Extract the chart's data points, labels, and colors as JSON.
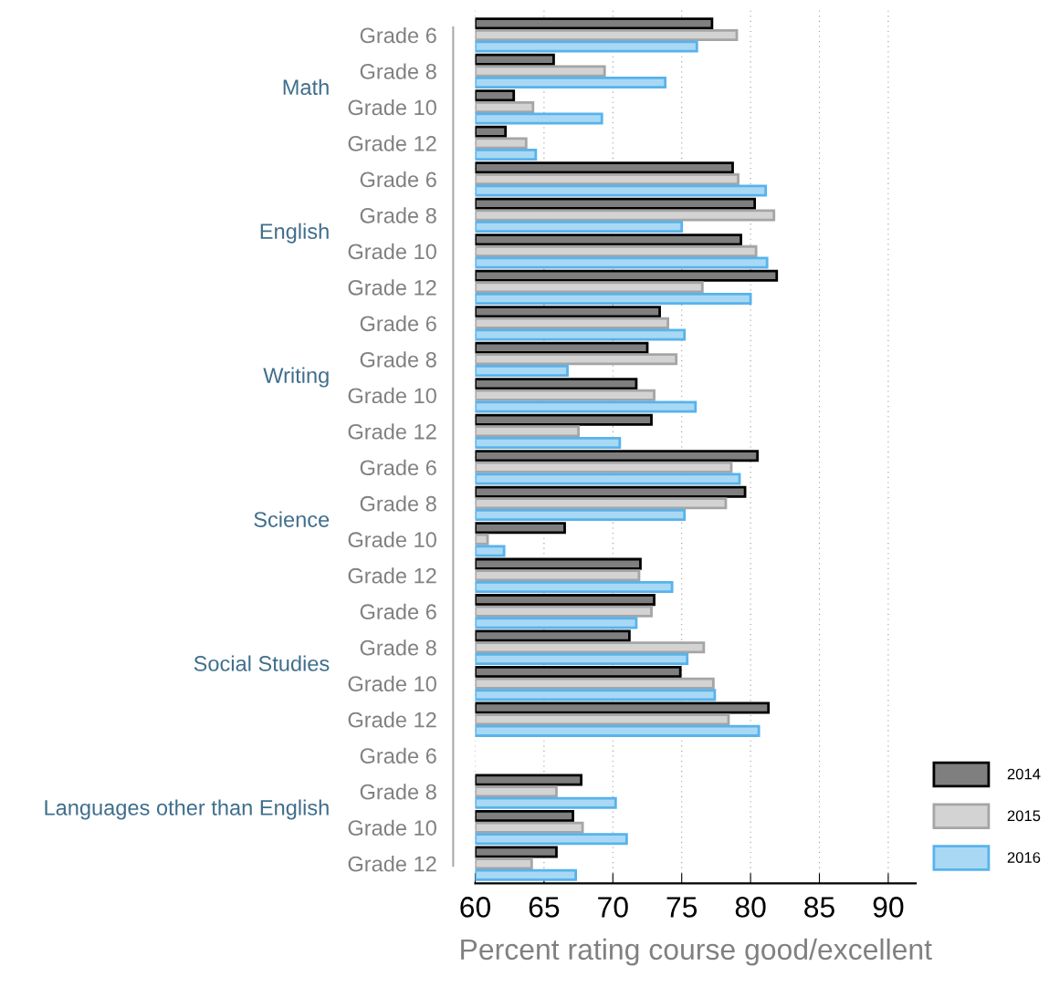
{
  "chart_data": {
    "type": "bar",
    "orientation": "horizontal",
    "categories": [
      "Grade 6",
      "Grade 8",
      "Grade 10",
      "Grade 12",
      "Grade 6",
      "Grade 8",
      "Grade 10",
      "Grade 12",
      "Grade 6",
      "Grade 8",
      "Grade 10",
      "Grade 12",
      "Grade 6",
      "Grade 8",
      "Grade 10",
      "Grade 12",
      "Grade 6",
      "Grade 8",
      "Grade 10",
      "Grade 12",
      "Grade 6",
      "Grade 8",
      "Grade 10",
      "Grade 12"
    ],
    "annotations": [
      "Math",
      "English",
      "Writing",
      "Science",
      "Social Studies",
      "Languages other than English"
    ],
    "xlabel": "Percent rating course good/excellent",
    "xlim": [
      60,
      92
    ],
    "xticks": [
      60,
      65,
      70,
      75,
      80,
      85,
      90
    ],
    "grid": "x",
    "legend": "bottom right",
    "series": [
      {
        "name": "2014",
        "color": "#7f7f7f",
        "values": [
          77.2,
          65.7,
          62.8,
          62.2,
          78.7,
          80.3,
          79.3,
          81.9,
          73.4,
          72.5,
          71.7,
          72.8,
          80.5,
          79.6,
          66.5,
          72.0,
          73.0,
          71.2,
          74.9,
          81.3,
          null,
          67.7,
          67.1,
          65.9
        ]
      },
      {
        "name": "2015",
        "color": "#d3d3d3",
        "values": [
          79.0,
          69.4,
          64.2,
          63.7,
          79.1,
          81.7,
          80.4,
          76.5,
          74.0,
          74.6,
          73.0,
          67.5,
          78.6,
          78.2,
          60.9,
          71.9,
          72.8,
          76.6,
          77.3,
          78.4,
          null,
          65.9,
          67.8,
          64.1
        ]
      },
      {
        "name": "2016",
        "color": "#a9d8f5",
        "values": [
          76.1,
          73.8,
          69.2,
          64.4,
          81.1,
          75.0,
          81.2,
          80.0,
          75.2,
          66.7,
          76.0,
          70.5,
          79.2,
          75.2,
          62.1,
          74.3,
          71.7,
          75.4,
          77.4,
          80.6,
          null,
          70.2,
          71.0,
          67.3
        ]
      }
    ]
  }
}
